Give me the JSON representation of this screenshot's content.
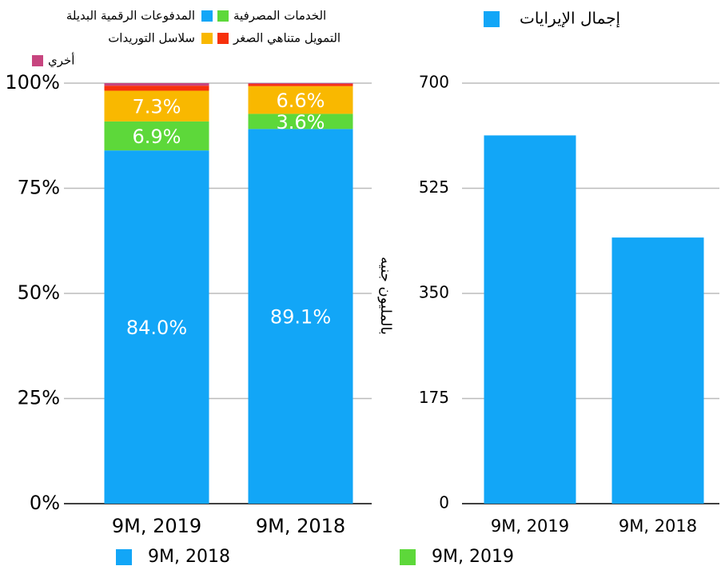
{
  "chart_data": [
    {
      "type": "stacked_bar",
      "categories": [
        "9M, 2019",
        "9M, 2018"
      ],
      "series": [
        {
          "name": "المدفوعات الرقمية البديلة",
          "color": "#12a6f7",
          "values": [
            84.0,
            89.1
          ],
          "value_labels": [
            "84.0%",
            "89.1%"
          ]
        },
        {
          "name": "الخدمات المصرفية",
          "color": "#5dd83a",
          "values": [
            6.9,
            3.6
          ],
          "value_labels": [
            "6.9%",
            "3.6%"
          ]
        },
        {
          "name": "سلاسل التوريدات",
          "color": "#f9b800",
          "values": [
            7.3,
            6.6
          ],
          "value_labels": [
            "7.3%",
            "6.6%"
          ]
        },
        {
          "name": "التمويل متناهي الصغر",
          "color": "#f7310c",
          "values": [
            1.2,
            0.5
          ]
        },
        {
          "name": "أخري",
          "color": "#c7457f",
          "values": [
            0.6,
            0.2
          ]
        }
      ],
      "ylim": [
        0,
        100
      ],
      "yticks": [
        {
          "value": 0,
          "label": "0%"
        },
        {
          "value": 25,
          "label": "25%"
        },
        {
          "value": 50,
          "label": "50%"
        },
        {
          "value": 75,
          "label": "75%"
        },
        {
          "value": 100,
          "label": "100%"
        }
      ],
      "grid": true
    },
    {
      "type": "bar",
      "y_label": "بالمليون جنيه",
      "categories": [
        "9M, 2019",
        "9M, 2018"
      ],
      "series": [
        {
          "name": "إجمال الإيرايات",
          "color": "#12a6f7",
          "values": [
            613,
            443
          ]
        }
      ],
      "ylim": [
        0,
        700
      ],
      "yticks": [
        0,
        175,
        350,
        525,
        700
      ],
      "grid": true
    }
  ],
  "legend_bottom": [
    {
      "name": "9M, 2018",
      "color": "#12a6f7"
    },
    {
      "name": "9M, 2019",
      "color": "#5dd83a"
    }
  ]
}
